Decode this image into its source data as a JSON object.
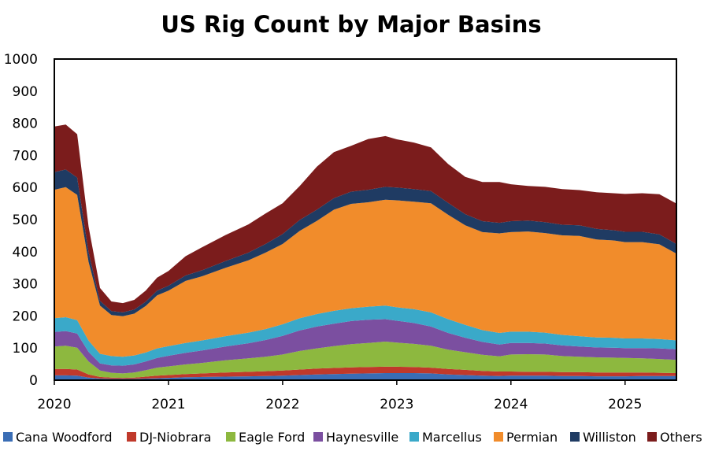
{
  "chart_data": {
    "type": "area",
    "stacked": true,
    "title": "US Rig Count by Major Basins",
    "xlabel": "",
    "ylabel": "",
    "ylim": [
      0,
      1000
    ],
    "yticks": [
      0,
      100,
      200,
      300,
      400,
      500,
      600,
      700,
      800,
      900,
      1000
    ],
    "xlim": [
      2020.0,
      2025.45
    ],
    "xticks": [
      2020,
      2021,
      2022,
      2023,
      2024,
      2025
    ],
    "legend_position": "bottom",
    "x": [
      2020.0,
      2020.1,
      2020.2,
      2020.3,
      2020.4,
      2020.5,
      2020.6,
      2020.7,
      2020.8,
      2020.9,
      2021.0,
      2021.15,
      2021.3,
      2021.5,
      2021.7,
      2021.85,
      2022.0,
      2022.15,
      2022.3,
      2022.45,
      2022.6,
      2022.75,
      2022.9,
      2023.0,
      2023.15,
      2023.3,
      2023.45,
      2023.6,
      2023.75,
      2023.9,
      2024.0,
      2024.15,
      2024.3,
      2024.45,
      2024.6,
      2024.75,
      2024.9,
      2025.0,
      2025.15,
      2025.3,
      2025.45
    ],
    "series": [
      {
        "name": "Cana Woodford",
        "color": "#3a6db5",
        "values": [
          15,
          15,
          14,
          8,
          5,
          4,
          4,
          4,
          5,
          6,
          7,
          9,
          10,
          11,
          12,
          13,
          14,
          16,
          18,
          19,
          20,
          21,
          22,
          22,
          22,
          21,
          18,
          16,
          14,
          13,
          14,
          14,
          14,
          13,
          13,
          12,
          12,
          12,
          13,
          13,
          13
        ]
      },
      {
        "name": "DJ-Niobrara",
        "color": "#c0392b",
        "values": [
          20,
          20,
          19,
          10,
          5,
          4,
          3,
          4,
          6,
          8,
          9,
          10,
          11,
          13,
          14,
          15,
          16,
          17,
          18,
          19,
          20,
          20,
          20,
          20,
          19,
          18,
          17,
          16,
          15,
          14,
          13,
          12,
          12,
          12,
          12,
          12,
          12,
          12,
          11,
          10,
          9
        ]
      },
      {
        "name": "Eagle Ford",
        "color": "#8db83f",
        "values": [
          70,
          72,
          68,
          40,
          20,
          15,
          14,
          16,
          20,
          25,
          27,
          30,
          33,
          38,
          42,
          45,
          50,
          58,
          63,
          68,
          72,
          75,
          78,
          75,
          72,
          68,
          60,
          55,
          50,
          47,
          53,
          55,
          54,
          50,
          48,
          47,
          46,
          45,
          44,
          43,
          41
        ]
      },
      {
        "name": "Haynesville",
        "color": "#7b4fa0",
        "values": [
          45,
          46,
          44,
          30,
          22,
          23,
          24,
          25,
          27,
          30,
          33,
          36,
          39,
          43,
          47,
          52,
          58,
          64,
          68,
          70,
          72,
          72,
          70,
          68,
          65,
          60,
          52,
          45,
          40,
          37,
          36,
          35,
          34,
          33,
          32,
          31,
          31,
          31,
          32,
          33,
          33
        ]
      },
      {
        "name": "Marcellus",
        "color": "#3aa9c9",
        "values": [
          43,
          43,
          42,
          35,
          30,
          29,
          28,
          28,
          28,
          30,
          30,
          31,
          31,
          32,
          33,
          34,
          36,
          38,
          39,
          40,
          40,
          41,
          42,
          42,
          43,
          44,
          43,
          40,
          37,
          36,
          35,
          35,
          34,
          33,
          32,
          31,
          31,
          30,
          30,
          29,
          28
        ]
      },
      {
        "name": "Permian",
        "color": "#f18c2b",
        "values": [
          400,
          405,
          390,
          245,
          150,
          128,
          126,
          130,
          145,
          165,
          173,
          193,
          200,
          213,
          225,
          238,
          250,
          272,
          290,
          315,
          325,
          325,
          330,
          333,
          335,
          340,
          325,
          310,
          305,
          310,
          310,
          312,
          310,
          310,
          312,
          305,
          303,
          300,
          300,
          295,
          270
        ]
      },
      {
        "name": "Williston",
        "color": "#1f3b63",
        "values": [
          55,
          55,
          54,
          30,
          15,
          12,
          12,
          13,
          13,
          15,
          15,
          17,
          19,
          21,
          24,
          27,
          31,
          34,
          35,
          36,
          38,
          39,
          40,
          40,
          39,
          38,
          37,
          35,
          34,
          33,
          34,
          34,
          34,
          33,
          33,
          33,
          32,
          32,
          32,
          31,
          30
        ]
      },
      {
        "name": "Others",
        "color": "#7b1c1c",
        "values": [
          142,
          140,
          135,
          80,
          40,
          30,
          29,
          30,
          35,
          40,
          46,
          60,
          72,
          81,
          88,
          95,
          96,
          106,
          134,
          143,
          143,
          158,
          158,
          150,
          145,
          136,
          121,
          116,
          122,
          127,
          115,
          108,
          110,
          111,
          110,
          114,
          115,
          118,
          120,
          125,
          126
        ]
      }
    ]
  }
}
